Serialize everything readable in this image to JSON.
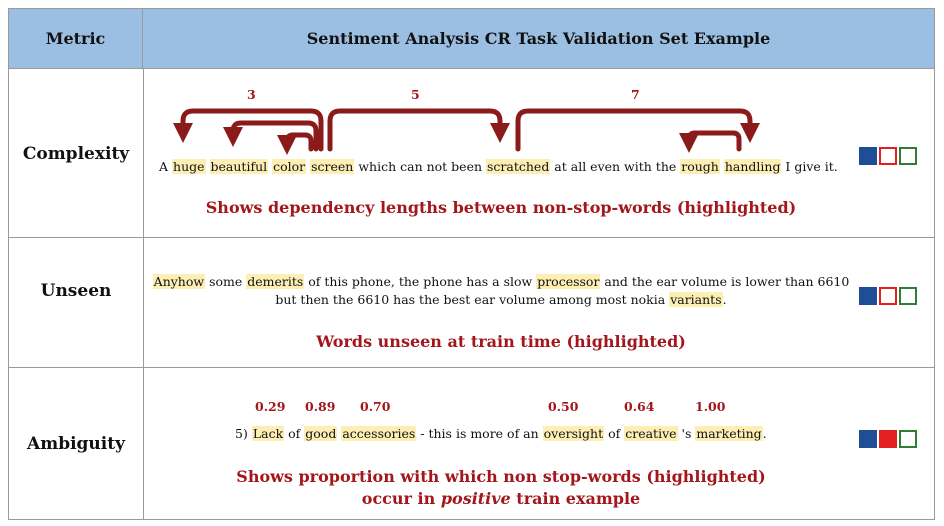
{
  "header": {
    "metric": "Metric",
    "title": "Sentiment Analysis CR Task Validation Set Example"
  },
  "rows": [
    {
      "label": "Complexity",
      "arc_labels": [
        "3",
        "5",
        "7"
      ],
      "sentence": [
        {
          "t": "A ",
          "h": false
        },
        {
          "t": "huge",
          "h": true
        },
        {
          "t": " ",
          "h": false
        },
        {
          "t": "beautiful",
          "h": true
        },
        {
          "t": " ",
          "h": false
        },
        {
          "t": "color",
          "h": true
        },
        {
          "t": " ",
          "h": false
        },
        {
          "t": "screen",
          "h": true
        },
        {
          "t": " which can not been ",
          "h": false
        },
        {
          "t": "scratched",
          "h": true
        },
        {
          "t": " at all even with the ",
          "h": false
        },
        {
          "t": "rough",
          "h": true
        },
        {
          "t": " ",
          "h": false
        },
        {
          "t": "handling",
          "h": true
        },
        {
          "t": " I give it.",
          "h": false
        }
      ],
      "caption": "Shows dependency lengths between non-stop-words (highlighted)",
      "legend": [
        "blue",
        "red-outline",
        "green-outline"
      ]
    },
    {
      "label": "Unseen",
      "sentence": [
        {
          "t": "Anyhow",
          "h": true
        },
        {
          "t": " some ",
          "h": false
        },
        {
          "t": "demerits",
          "h": true
        },
        {
          "t": " of this phone, the phone has a slow ",
          "h": false
        },
        {
          "t": "processor",
          "h": true
        },
        {
          "t": " and the ear volume is lower than 6610 but then the 6610 has the best ear volume among most nokia ",
          "h": false
        },
        {
          "t": "variants",
          "h": true
        },
        {
          "t": ".",
          "h": false
        }
      ],
      "caption": "Words unseen at train time (highlighted)",
      "legend": [
        "blue",
        "red-outline",
        "green-outline"
      ]
    },
    {
      "label": "Ambiguity",
      "scores": [
        "0.29",
        "0.89",
        "0.70",
        "0.50",
        "0.64",
        "1.00"
      ],
      "sentence": [
        {
          "t": "5) ",
          "h": false
        },
        {
          "t": "Lack",
          "h": true
        },
        {
          "t": " of ",
          "h": false
        },
        {
          "t": "good",
          "h": true
        },
        {
          "t": " ",
          "h": false
        },
        {
          "t": "accessories",
          "h": true
        },
        {
          "t": " - this is more of an ",
          "h": false
        },
        {
          "t": "oversight",
          "h": true
        },
        {
          "t": " of ",
          "h": false
        },
        {
          "t": "creative",
          "h": true
        },
        {
          "t": " 's ",
          "h": false
        },
        {
          "t": "marketing",
          "h": true
        },
        {
          "t": ".",
          "h": false
        }
      ],
      "caption_line1": "Shows proportion with which non stop-words (highlighted)",
      "caption_line2_pre": "occur in ",
      "caption_line2_em": "positive",
      "caption_line2_post": " train example",
      "legend": [
        "blue",
        "red-filled",
        "green-outline"
      ]
    }
  ],
  "colors": {
    "header_bg": "#9bbfe3",
    "caption_red": "#a3161b",
    "highlight": "#fdeeb4",
    "arrow": "#8b1a1a",
    "legend_blue": "#1f4e96",
    "legend_red": "#e22020",
    "legend_green": "#2e7d32"
  }
}
